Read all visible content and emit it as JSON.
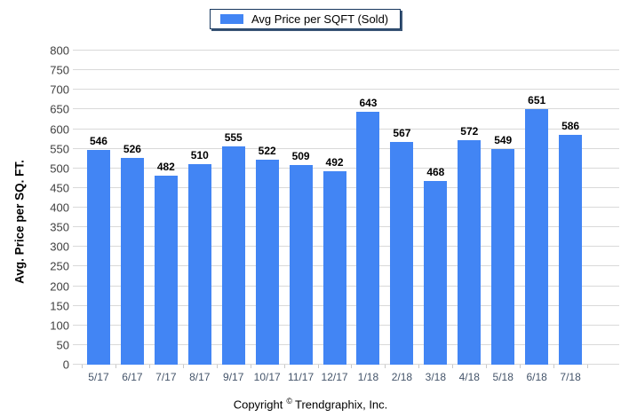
{
  "legend": {
    "label": "Avg Price per SQFT (Sold)",
    "swatch_color": "#4285F4"
  },
  "footer": {
    "copyright_prefix": "Copyright",
    "copyright_symbol": "©",
    "copyright_suffix": "Trendgraphix, Inc."
  },
  "chart_data": {
    "type": "bar",
    "title": "",
    "series_name": "Avg Price per SQFT (Sold)",
    "categories": [
      "5/17",
      "6/17",
      "7/17",
      "8/17",
      "9/17",
      "10/17",
      "11/17",
      "12/17",
      "1/18",
      "2/18",
      "3/18",
      "4/18",
      "5/18",
      "6/18",
      "7/18"
    ],
    "values": [
      546,
      526,
      482,
      510,
      555,
      522,
      509,
      492,
      643,
      567,
      468,
      572,
      549,
      651,
      586
    ],
    "xlabel": "",
    "ylabel": "Avg. Price per SQ. FT.",
    "ylim": [
      0,
      800
    ],
    "ytick_step": 50,
    "grid": "horizontal",
    "legend_position": "top-center",
    "bar_color": "#4285F4",
    "value_labels": true
  },
  "colors": {
    "bar": "#4285F4",
    "gridline": "#D9D9D9",
    "y_tick_label": "#404040",
    "x_tick_label": "#44546A",
    "value_label": "#000000",
    "legend_border": "#17375E",
    "background": "#FFFFFF"
  }
}
